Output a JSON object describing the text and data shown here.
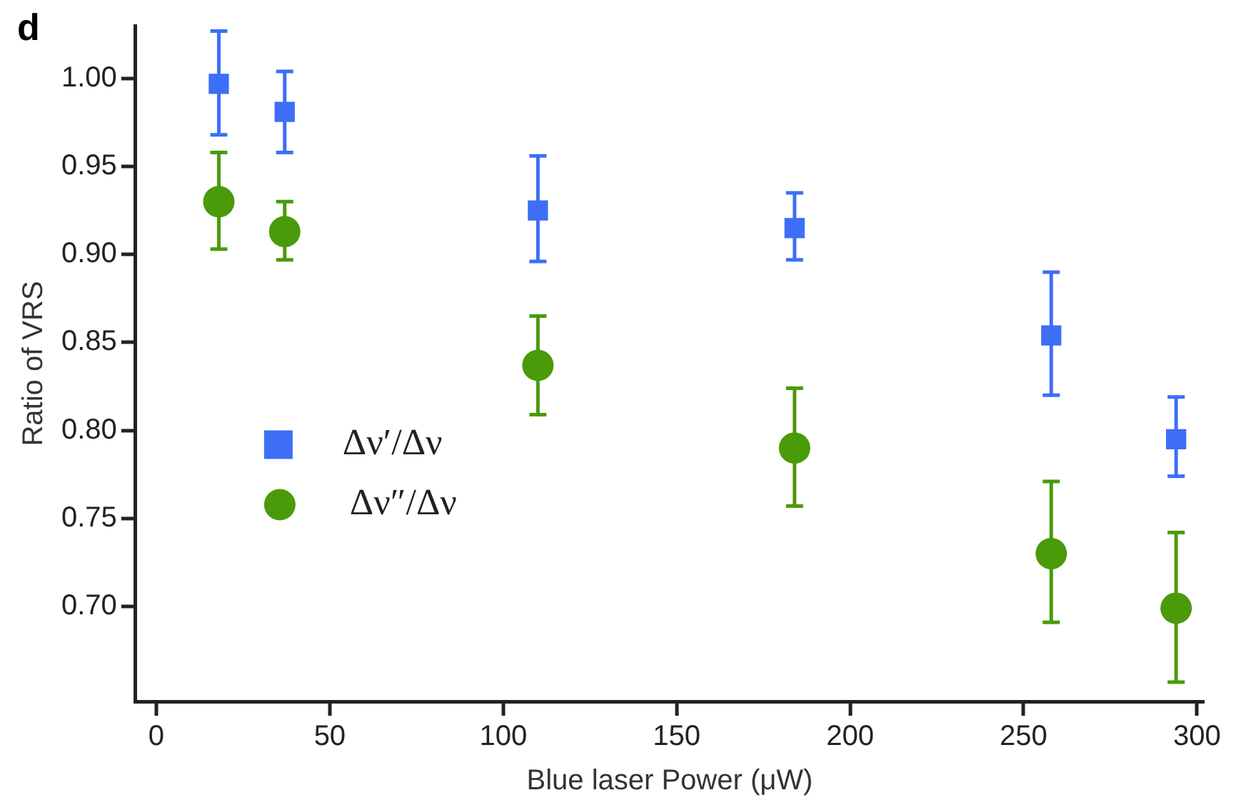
{
  "chart_data": {
    "type": "scatter",
    "xlabel": "Blue laser Power (μW)",
    "ylabel": "Ratio of VRS",
    "annotations": [
      "d"
    ],
    "x": [
      18,
      37,
      110,
      184,
      258,
      294
    ],
    "xlim": [
      -6,
      302
    ],
    "xticks": [
      0,
      50,
      100,
      150,
      200,
      250,
      300
    ],
    "ylim": [
      0.646,
      1.03
    ],
    "yticks": [
      {
        "value": 0.7,
        "label": "0.70"
      },
      {
        "value": 0.75,
        "label": "0.75"
      },
      {
        "value": 0.8,
        "label": "0.80"
      },
      {
        "value": 0.85,
        "label": "0.85"
      },
      {
        "value": 0.9,
        "label": "0.90"
      },
      {
        "value": 0.95,
        "label": "0.95"
      },
      {
        "value": 1.0,
        "label": "1.00"
      }
    ],
    "grid": false,
    "legend": "bottom left",
    "series": [
      {
        "name": "Δν′/Δν",
        "color": "#3d6ef5",
        "marker": "square",
        "values": [
          0.997,
          0.981,
          0.925,
          0.915,
          0.854,
          0.795
        ],
        "errors": [
          [
            0.968,
            1.027
          ],
          [
            0.958,
            1.004
          ],
          [
            0.896,
            0.956
          ],
          [
            0.897,
            0.935
          ],
          [
            0.82,
            0.89
          ],
          [
            0.774,
            0.819
          ]
        ]
      },
      {
        "name": "Δν″/Δν",
        "color": "#4a9a0a",
        "marker": "circle",
        "values": [
          0.93,
          0.913,
          0.837,
          0.79,
          0.73,
          0.699
        ],
        "errors": [
          [
            0.903,
            0.958
          ],
          [
            0.897,
            0.93
          ],
          [
            0.809,
            0.865
          ],
          [
            0.757,
            0.824
          ],
          [
            0.691,
            0.771
          ],
          [
            0.657,
            0.742
          ]
        ]
      }
    ]
  }
}
